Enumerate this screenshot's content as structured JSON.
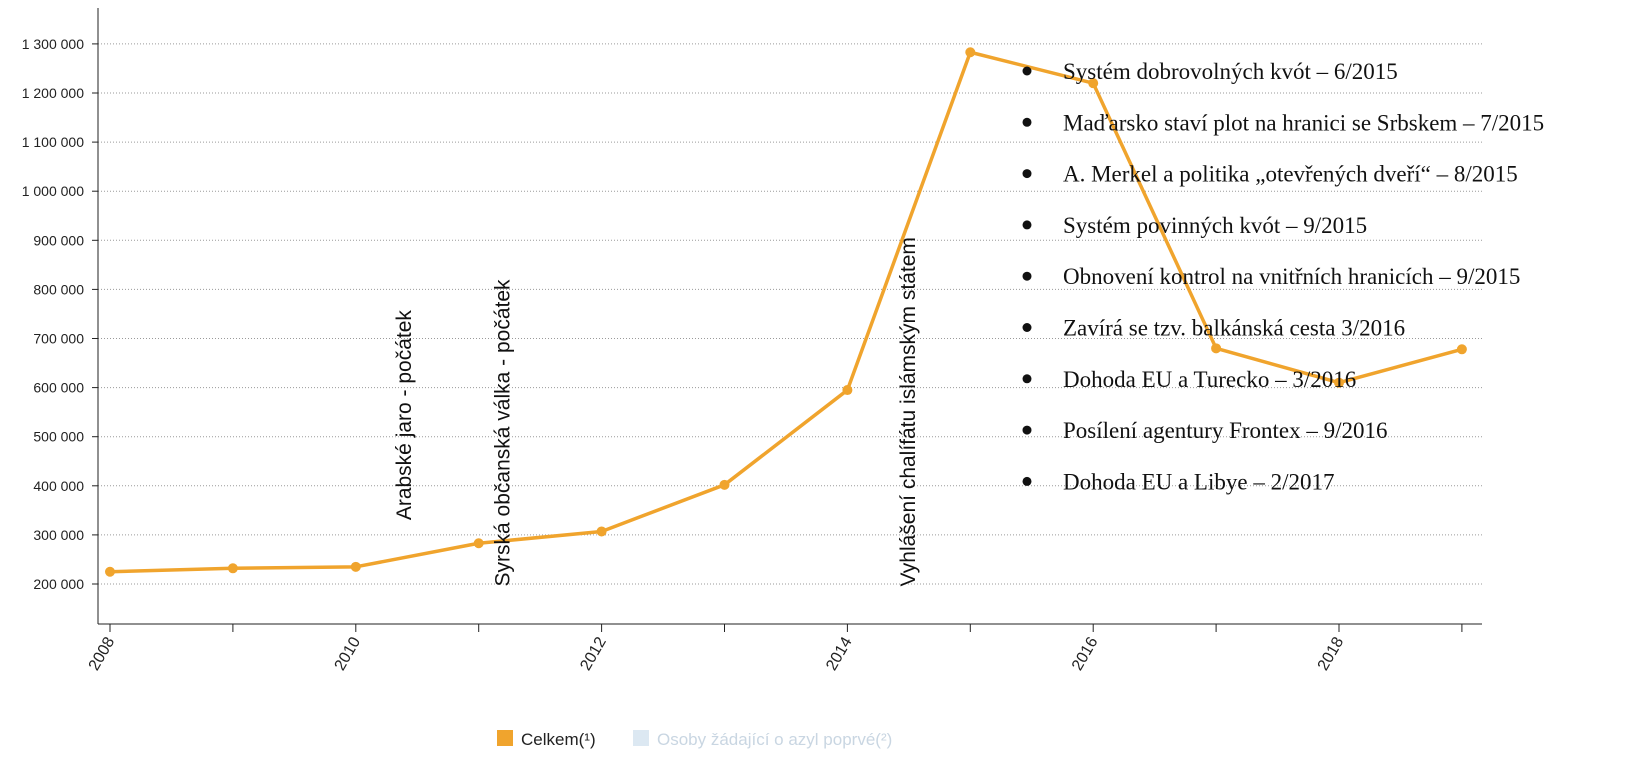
{
  "colors": {
    "series_total": "#f0a42d",
    "series_first": "#dce8f2",
    "series_first_text": "#c9d6e2",
    "grid": "#9a9a9a",
    "axis": "#222222"
  },
  "chart_data": {
    "type": "line",
    "title": "",
    "xlabel": "",
    "ylabel": "",
    "xlim": [
      2008,
      2019
    ],
    "ylim": [
      120000,
      1330000
    ],
    "grid": "horizontal dotted",
    "legend_position": "bottom-center",
    "x_ticks": [
      "2008",
      "2010",
      "2012",
      "2014",
      "2016",
      "2018"
    ],
    "y_ticks": [
      {
        "value": 200000,
        "label": "200 000"
      },
      {
        "value": 300000,
        "label": "300 000"
      },
      {
        "value": 400000,
        "label": "400 000"
      },
      {
        "value": 500000,
        "label": "500 000"
      },
      {
        "value": 600000,
        "label": "600 000"
      },
      {
        "value": 700000,
        "label": "700 000"
      },
      {
        "value": 800000,
        "label": "800 000"
      },
      {
        "value": 900000,
        "label": "900 000"
      },
      {
        "value": 1000000,
        "label": "1 000 000"
      },
      {
        "value": 1100000,
        "label": "1 100 000"
      },
      {
        "value": 1200000,
        "label": "1 200 000"
      },
      {
        "value": 1300000,
        "label": "1 300 000"
      }
    ],
    "series": [
      {
        "name": "Celkem(¹)",
        "visible": true,
        "x": [
          2008,
          2009,
          2010,
          2011,
          2012,
          2013,
          2014,
          2015,
          2016,
          2017,
          2018,
          2019
        ],
        "values": [
          225000,
          232000,
          235000,
          283000,
          307000,
          402000,
          595000,
          1283000,
          1220000,
          680000,
          610000,
          678000
        ]
      },
      {
        "name": "Osoby žádající o azyl poprvé(²)",
        "visible": false,
        "x": [],
        "values": []
      }
    ],
    "vertical_annotations": [
      {
        "text": "Arabské jaro - počátek",
        "x": 2010.45,
        "y": 330000
      },
      {
        "text": "Syrská občanská válka - počátek",
        "x": 2011.25,
        "y": 195000
      },
      {
        "text": "Vyhlášení chalífátu islámským státem",
        "x": 2014.55,
        "y": 195000
      }
    ],
    "event_list": [
      "Systém dobrovolných kvót – 6/2015",
      "Maďarsko staví plot na hranici se Srbskem – 7/2015",
      "A. Merkel a politika „otevřených dveří“ – 8/2015",
      "Systém povinných kvót – 9/2015",
      "Obnovení kontrol na vnitřních hranicích – 9/2015",
      "Zavírá se tzv. balkánská cesta 3/2016",
      "Dohoda EU a Turecko – 3/2016",
      "Posílení agentury Frontex – 9/2016",
      "Dohoda EU a Libye – 2/2017"
    ]
  }
}
